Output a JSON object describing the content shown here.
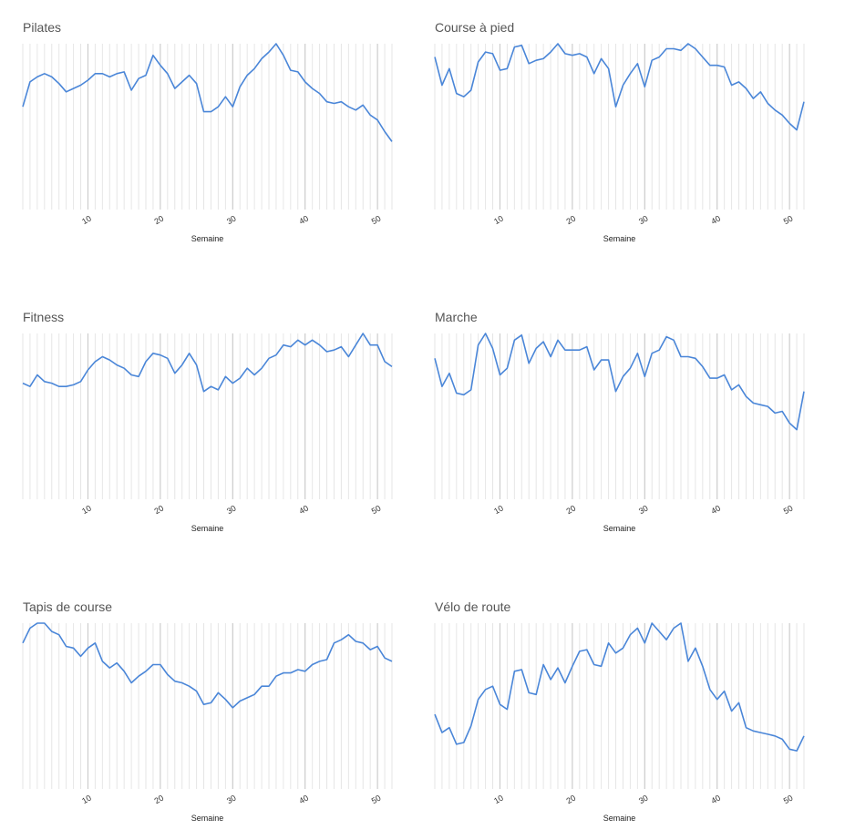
{
  "chart_data": [
    {
      "type": "line",
      "title": "Pilates",
      "x_label": "Semaine",
      "x": [
        1,
        2,
        3,
        4,
        5,
        6,
        7,
        8,
        9,
        10,
        11,
        12,
        13,
        14,
        15,
        16,
        17,
        18,
        19,
        20,
        21,
        22,
        23,
        24,
        25,
        26,
        27,
        28,
        29,
        30,
        31,
        32,
        33,
        34,
        35,
        36,
        37,
        38,
        39,
        40,
        41,
        42,
        43,
        44,
        45,
        46,
        47,
        48,
        49,
        50,
        51,
        52
      ],
      "xlim": [
        1,
        52
      ],
      "xticks": [
        10,
        20,
        30,
        40,
        50
      ],
      "ylim": [
        0,
        100
      ],
      "series": [
        {
          "color": "#4a86d8",
          "values": [
            62,
            77,
            80,
            82,
            80,
            76,
            71,
            73,
            75,
            78,
            82,
            82,
            80,
            82,
            83,
            72,
            79,
            81,
            93,
            87,
            82,
            73,
            77,
            81,
            76,
            59,
            59,
            62,
            68,
            62,
            74,
            81,
            85,
            91,
            95,
            100,
            93,
            84,
            83,
            77,
            73,
            70,
            65,
            64,
            65,
            62,
            60,
            63,
            57,
            54,
            47,
            41
          ]
        }
      ]
    },
    {
      "type": "line",
      "title": "Course à pied",
      "x_label": "Semaine",
      "x": [
        1,
        2,
        3,
        4,
        5,
        6,
        7,
        8,
        9,
        10,
        11,
        12,
        13,
        14,
        15,
        16,
        17,
        18,
        19,
        20,
        21,
        22,
        23,
        24,
        25,
        26,
        27,
        28,
        29,
        30,
        31,
        32,
        33,
        34,
        35,
        36,
        37,
        38,
        39,
        40,
        41,
        42,
        43,
        44,
        45,
        46,
        47,
        48,
        49,
        50,
        51,
        52
      ],
      "xlim": [
        1,
        52
      ],
      "xticks": [
        10,
        20,
        30,
        40,
        50
      ],
      "ylim": [
        0,
        100
      ],
      "series": [
        {
          "color": "#4a86d8",
          "values": [
            92,
            75,
            85,
            70,
            68,
            72,
            89,
            95,
            94,
            84,
            85,
            98,
            99,
            88,
            90,
            91,
            95,
            100,
            94,
            93,
            94,
            92,
            82,
            91,
            85,
            62,
            75,
            82,
            88,
            74,
            90,
            92,
            97,
            97,
            96,
            100,
            97,
            92,
            87,
            87,
            86,
            75,
            77,
            73,
            67,
            71,
            64,
            60,
            57,
            52,
            48,
            65
          ]
        }
      ]
    },
    {
      "type": "line",
      "title": "Fitness",
      "x_label": "Semaine",
      "x": [
        1,
        2,
        3,
        4,
        5,
        6,
        7,
        8,
        9,
        10,
        11,
        12,
        13,
        14,
        15,
        16,
        17,
        18,
        19,
        20,
        21,
        22,
        23,
        24,
        25,
        26,
        27,
        28,
        29,
        30,
        31,
        32,
        33,
        34,
        35,
        36,
        37,
        38,
        39,
        40,
        41,
        42,
        43,
        44,
        45,
        46,
        47,
        48,
        49,
        50,
        51,
        52
      ],
      "xlim": [
        1,
        52
      ],
      "xticks": [
        10,
        20,
        30,
        40,
        50
      ],
      "ylim": [
        0,
        100
      ],
      "series": [
        {
          "color": "#4a86d8",
          "values": [
            70,
            68,
            75,
            71,
            70,
            68,
            68,
            69,
            71,
            78,
            83,
            86,
            84,
            81,
            79,
            75,
            74,
            83,
            88,
            87,
            85,
            76,
            81,
            88,
            81,
            65,
            68,
            66,
            74,
            70,
            73,
            79,
            75,
            79,
            85,
            87,
            93,
            92,
            96,
            93,
            96,
            93,
            89,
            90,
            92,
            86,
            93,
            100,
            93,
            93,
            83,
            80
          ]
        }
      ]
    },
    {
      "type": "line",
      "title": "Marche",
      "x_label": "Semaine",
      "x": [
        1,
        2,
        3,
        4,
        5,
        6,
        7,
        8,
        9,
        10,
        11,
        12,
        13,
        14,
        15,
        16,
        17,
        18,
        19,
        20,
        21,
        22,
        23,
        24,
        25,
        26,
        27,
        28,
        29,
        30,
        31,
        32,
        33,
        34,
        35,
        36,
        37,
        38,
        39,
        40,
        41,
        42,
        43,
        44,
        45,
        46,
        47,
        48,
        49,
        50,
        51,
        52
      ],
      "xlim": [
        1,
        52
      ],
      "xticks": [
        10,
        20,
        30,
        40,
        50
      ],
      "ylim": [
        0,
        100
      ],
      "series": [
        {
          "color": "#4a86d8",
          "values": [
            85,
            68,
            76,
            64,
            63,
            66,
            93,
            100,
            91,
            75,
            79,
            96,
            99,
            82,
            91,
            95,
            86,
            96,
            90,
            90,
            90,
            92,
            78,
            84,
            84,
            65,
            74,
            79,
            88,
            74,
            88,
            90,
            98,
            96,
            86,
            86,
            85,
            80,
            73,
            73,
            75,
            66,
            69,
            62,
            58,
            57,
            56,
            52,
            53,
            46,
            42,
            65
          ]
        }
      ]
    },
    {
      "type": "line",
      "title": "Tapis de course",
      "x_label": "Semaine",
      "x": [
        1,
        2,
        3,
        4,
        5,
        6,
        7,
        8,
        9,
        10,
        11,
        12,
        13,
        14,
        15,
        16,
        17,
        18,
        19,
        20,
        21,
        22,
        23,
        24,
        25,
        26,
        27,
        28,
        29,
        30,
        31,
        32,
        33,
        34,
        35,
        36,
        37,
        38,
        39,
        40,
        41,
        42,
        43,
        44,
        45,
        46,
        47,
        48,
        49,
        50,
        51,
        52
      ],
      "xlim": [
        1,
        52
      ],
      "xticks": [
        10,
        20,
        30,
        40,
        50
      ],
      "ylim": [
        0,
        100
      ],
      "series": [
        {
          "color": "#4a86d8",
          "values": [
            88,
            97,
            100,
            100,
            95,
            93,
            86,
            85,
            80,
            85,
            88,
            77,
            73,
            76,
            71,
            64,
            68,
            71,
            75,
            75,
            69,
            65,
            64,
            62,
            59,
            51,
            52,
            58,
            54,
            49,
            53,
            55,
            57,
            62,
            62,
            68,
            70,
            70,
            72,
            71,
            75,
            77,
            78,
            88,
            90,
            93,
            89,
            88,
            84,
            86,
            79,
            77
          ]
        }
      ]
    },
    {
      "type": "line",
      "title": "Vélo de route",
      "x_label": "Semaine",
      "x": [
        1,
        2,
        3,
        4,
        5,
        6,
        7,
        8,
        9,
        10,
        11,
        12,
        13,
        14,
        15,
        16,
        17,
        18,
        19,
        20,
        21,
        22,
        23,
        24,
        25,
        26,
        27,
        28,
        29,
        30,
        31,
        32,
        33,
        34,
        35,
        36,
        37,
        38,
        39,
        40,
        41,
        42,
        43,
        44,
        45,
        46,
        47,
        48,
        49,
        50,
        51,
        52
      ],
      "xlim": [
        1,
        52
      ],
      "xticks": [
        10,
        20,
        30,
        40,
        50
      ],
      "ylim": [
        0,
        100
      ],
      "series": [
        {
          "color": "#4a86d8",
          "values": [
            45,
            34,
            37,
            27,
            28,
            38,
            54,
            60,
            62,
            51,
            48,
            71,
            72,
            58,
            57,
            75,
            66,
            73,
            64,
            74,
            83,
            84,
            75,
            74,
            88,
            82,
            85,
            93,
            97,
            88,
            100,
            95,
            90,
            97,
            100,
            77,
            85,
            74,
            60,
            54,
            59,
            47,
            52,
            37,
            35,
            34,
            33,
            32,
            30,
            24,
            23,
            32
          ]
        }
      ]
    }
  ]
}
